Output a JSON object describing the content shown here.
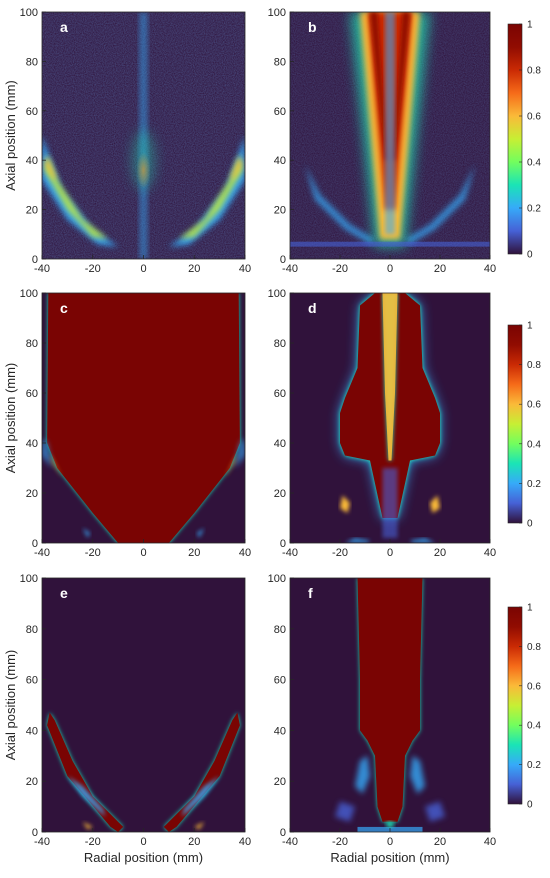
{
  "chart_data": {
    "type": "heatmap",
    "colormap": "turbo",
    "background_color": "#30123b",
    "x_axis": {
      "label": "Radial position (mm)",
      "ticks": [
        -40,
        -20,
        0,
        20,
        40
      ],
      "range": [
        -40,
        40
      ]
    },
    "y_axis": {
      "label": "Axial position (mm)",
      "ticks": [
        0,
        20,
        40,
        60,
        80,
        100
      ],
      "range": [
        0,
        100
      ]
    },
    "colorbars": [
      {
        "rows": [
          "a",
          "b"
        ],
        "ticks": [
          0,
          0.2,
          0.4,
          0.6,
          0.8,
          1
        ],
        "range": [
          0,
          1
        ]
      },
      {
        "rows": [
          "c",
          "d"
        ],
        "ticks": [
          0,
          0.2,
          0.4,
          0.6,
          0.8,
          1
        ],
        "range": [
          0,
          1
        ]
      },
      {
        "rows": [
          "e",
          "f"
        ],
        "ticks": [
          0,
          0.2,
          0.4,
          0.6,
          0.8,
          1
        ],
        "range": [
          0,
          1
        ]
      }
    ],
    "panels": [
      {
        "label": "a",
        "description": "noisy intensity field; wing-shaped sprays from (±10,5) rising to (±38,45); weak central streak on axis"
      },
      {
        "label": "b",
        "description": "bright conical jet centered on axis, widening from ~±3 mm at base to ~±12 mm at 100 mm; faint outer wings"
      },
      {
        "label": "c",
        "description": "saturated region (value 1) filling most of domain above outer boundaries rising from (±10,0) to (±38,40)"
      },
      {
        "label": "d",
        "description": "saturated jet core widening to ~±20 mm between 35 and 55 mm axial, narrowing to ~±13 mm above; small spots near (±18,15)"
      },
      {
        "label": "e",
        "description": "two thin saturated diagonal bands from (±10,0) to (±38,46)"
      },
      {
        "label": "f",
        "description": "saturated column ~±13 mm wide from 35 to 100 mm axial, narrow neck ~±6 mm below 35 mm; small scattered spots at base"
      }
    ]
  }
}
